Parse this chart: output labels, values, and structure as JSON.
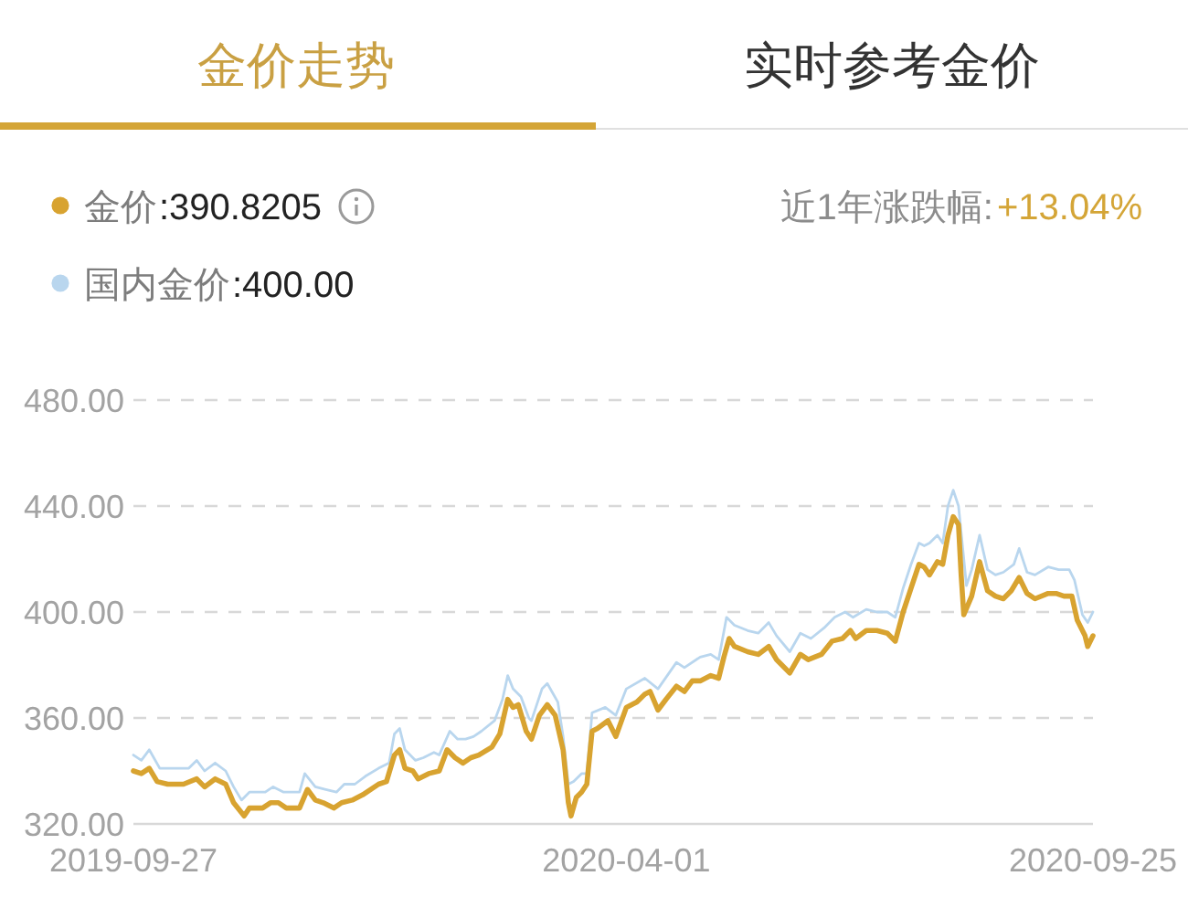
{
  "chart_data": {
    "type": "line",
    "title": "金价走势",
    "series": [
      {
        "name": "金价",
        "color": "#d8a330",
        "x": [
          "2019-09-27",
          "2019-09-30",
          "2019-10-03",
          "2019-10-06",
          "2019-10-10",
          "2019-10-16",
          "2019-10-21",
          "2019-10-24",
          "2019-10-28",
          "2019-11-01",
          "2019-11-04",
          "2019-11-08",
          "2019-11-10",
          "2019-11-15",
          "2019-11-18",
          "2019-11-21",
          "2019-11-24",
          "2019-11-29",
          "2019-12-02",
          "2019-12-05",
          "2019-12-08",
          "2019-12-12",
          "2019-12-15",
          "2019-12-19",
          "2019-12-23",
          "2019-12-29",
          "2020-01-01",
          "2020-01-04",
          "2020-01-06",
          "2020-01-08",
          "2020-01-11",
          "2020-01-13",
          "2020-01-17",
          "2020-01-21",
          "2020-01-24",
          "2020-01-27",
          "2020-01-30",
          "2020-02-02",
          "2020-02-05",
          "2020-02-10",
          "2020-02-13",
          "2020-02-16",
          "2020-02-18",
          "2020-02-20",
          "2020-02-23",
          "2020-02-25",
          "2020-02-28",
          "2020-03-02",
          "2020-03-05",
          "2020-03-08",
          "2020-03-10",
          "2020-03-11",
          "2020-03-13",
          "2020-03-15",
          "2020-03-17",
          "2020-03-19",
          "2020-03-21",
          "2020-03-25",
          "2020-03-28",
          "2020-04-01",
          "2020-04-05",
          "2020-04-08",
          "2020-04-10",
          "2020-04-13",
          "2020-04-16",
          "2020-04-20",
          "2020-04-23",
          "2020-04-26",
          "2020-04-29",
          "2020-05-03",
          "2020-05-06",
          "2020-05-08",
          "2020-05-10",
          "2020-05-12",
          "2020-05-17",
          "2020-05-21",
          "2020-05-25",
          "2020-05-28",
          "2020-06-02",
          "2020-06-06",
          "2020-06-09",
          "2020-06-14",
          "2020-06-18",
          "2020-06-22",
          "2020-06-25",
          "2020-06-27",
          "2020-07-01",
          "2020-07-05",
          "2020-07-09",
          "2020-07-12",
          "2020-07-15",
          "2020-07-18",
          "2020-07-21",
          "2020-07-23",
          "2020-07-25",
          "2020-07-28",
          "2020-07-30",
          "2020-08-01",
          "2020-08-03",
          "2020-08-05",
          "2020-08-06",
          "2020-08-07",
          "2020-08-10",
          "2020-08-13",
          "2020-08-16",
          "2020-08-19",
          "2020-08-22",
          "2020-08-25",
          "2020-08-28",
          "2020-08-31",
          "2020-09-03",
          "2020-09-08",
          "2020-09-11",
          "2020-09-14",
          "2020-09-17",
          "2020-09-19",
          "2020-09-22",
          "2020-09-23",
          "2020-09-25"
        ],
        "values": [
          340,
          339,
          341,
          336,
          335,
          335,
          337,
          334,
          337,
          335,
          328,
          323,
          326,
          326,
          328,
          328,
          326,
          326,
          333,
          329,
          328,
          326,
          328,
          329,
          331,
          335,
          336,
          346,
          348,
          341,
          340,
          337,
          339,
          340,
          348,
          345,
          343,
          345,
          346,
          349,
          354,
          367,
          364,
          365,
          355,
          352,
          361,
          365,
          361,
          348,
          328,
          323,
          330,
          332,
          335,
          355,
          356,
          359,
          353,
          364,
          366,
          369,
          370,
          363,
          367,
          372,
          370,
          374,
          374,
          376,
          375,
          383,
          390,
          387,
          385,
          384,
          387,
          382,
          377,
          384,
          382,
          384,
          389,
          390,
          393,
          390,
          393,
          393,
          392,
          389,
          400,
          409,
          418,
          417,
          414,
          419,
          418,
          429,
          436,
          433,
          414,
          399,
          406,
          419,
          408,
          406,
          405,
          408,
          413,
          407,
          405,
          407,
          407,
          406,
          406,
          397,
          391,
          387,
          391
        ]
      },
      {
        "name": "国内金价",
        "color": "#b9d6ee",
        "x": [
          "2019-09-27",
          "2019-09-30",
          "2019-10-03",
          "2019-10-07",
          "2019-10-12",
          "2019-10-18",
          "2019-10-21",
          "2019-10-24",
          "2019-10-28",
          "2019-11-01",
          "2019-11-04",
          "2019-11-07",
          "2019-11-10",
          "2019-11-16",
          "2019-11-19",
          "2019-11-23",
          "2019-11-29",
          "2019-12-01",
          "2019-12-05",
          "2019-12-09",
          "2019-12-13",
          "2019-12-16",
          "2019-12-20",
          "2019-12-24",
          "2019-12-29",
          "2020-01-02",
          "2020-01-04",
          "2020-01-06",
          "2020-01-08",
          "2020-01-12",
          "2020-01-15",
          "2020-01-19",
          "2020-01-21",
          "2020-01-25",
          "2020-01-28",
          "2020-01-31",
          "2020-02-03",
          "2020-02-06",
          "2020-02-11",
          "2020-02-14",
          "2020-02-16",
          "2020-02-18",
          "2020-02-21",
          "2020-02-24",
          "2020-02-25",
          "2020-02-29",
          "2020-03-02",
          "2020-03-06",
          "2020-03-08",
          "2020-03-10",
          "2020-03-12",
          "2020-03-15",
          "2020-03-17",
          "2020-03-19",
          "2020-03-24",
          "2020-03-28",
          "2020-04-01",
          "2020-04-08",
          "2020-04-13",
          "2020-04-20",
          "2020-04-23",
          "2020-04-29",
          "2020-05-03",
          "2020-05-06",
          "2020-05-09",
          "2020-05-12",
          "2020-05-17",
          "2020-05-21",
          "2020-05-25",
          "2020-05-28",
          "2020-06-02",
          "2020-06-06",
          "2020-06-10",
          "2020-06-15",
          "2020-06-19",
          "2020-06-23",
          "2020-06-26",
          "2020-07-01",
          "2020-07-05",
          "2020-07-09",
          "2020-07-12",
          "2020-07-15",
          "2020-07-18",
          "2020-07-21",
          "2020-07-23",
          "2020-07-25",
          "2020-07-28",
          "2020-07-30",
          "2020-08-01",
          "2020-08-03",
          "2020-08-05",
          "2020-08-07",
          "2020-08-08",
          "2020-08-10",
          "2020-08-13",
          "2020-08-16",
          "2020-08-19",
          "2020-08-22",
          "2020-08-26",
          "2020-08-28",
          "2020-08-31",
          "2020-09-03",
          "2020-09-08",
          "2020-09-12",
          "2020-09-16",
          "2020-09-18",
          "2020-09-21",
          "2020-09-23",
          "2020-09-25"
        ],
        "values": [
          346,
          344,
          348,
          341,
          341,
          341,
          344,
          340,
          343,
          340,
          334,
          329,
          332,
          332,
          334,
          332,
          332,
          339,
          334,
          333,
          332,
          335,
          335,
          338,
          341,
          343,
          354,
          356,
          348,
          344,
          345,
          347,
          346,
          355,
          352,
          352,
          353,
          355,
          359,
          367,
          376,
          371,
          368,
          360,
          359,
          371,
          373,
          366,
          353,
          335,
          336,
          339,
          339,
          362,
          364,
          361,
          371,
          375,
          371,
          381,
          379,
          383,
          384,
          382,
          398,
          395,
          393,
          392,
          396,
          391,
          385,
          392,
          390,
          394,
          398,
          400,
          398,
          401,
          400,
          400,
          398,
          409,
          418,
          426,
          425,
          426,
          429,
          426,
          440,
          446,
          440,
          420,
          410,
          416,
          429,
          416,
          414,
          415,
          418,
          424,
          415,
          414,
          417,
          416,
          416,
          412,
          399,
          396,
          400
        ]
      }
    ],
    "xlim": [
      "2019-09-27",
      "2020-09-25"
    ],
    "xticks": [
      "2019-09-27",
      "2020-04-01",
      "2020-09-25"
    ],
    "ylim": [
      320,
      480
    ],
    "yticks": [
      {
        "value": 320,
        "label": "320.00"
      },
      {
        "value": 360,
        "label": "360.00"
      },
      {
        "value": 400,
        "label": "400.00"
      },
      {
        "value": 440,
        "label": "440.00"
      },
      {
        "value": 480,
        "label": "480.00"
      }
    ],
    "grid": "y",
    "legend": "top left",
    "annotations": [
      "实时参考金价",
      ":390.8205",
      ":400.00",
      "近1年涨跌幅:",
      "+13.04%"
    ]
  }
}
